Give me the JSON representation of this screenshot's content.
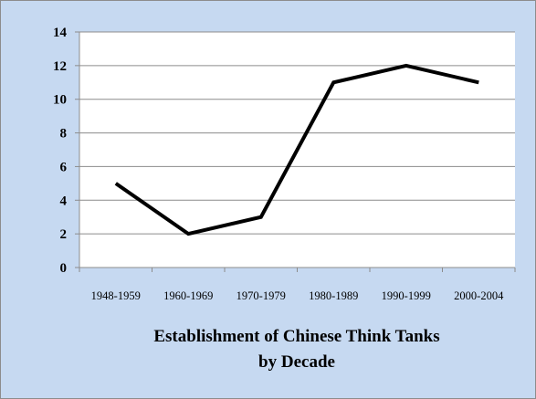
{
  "chart_data": {
    "type": "line",
    "title_lines": [
      "Establishment of Chinese Think Tanks",
      "by Decade"
    ],
    "categories": [
      "1948-1959",
      "1960-1969",
      "1970-1979",
      "1980-1989",
      "1990-1999",
      "2000-2004"
    ],
    "values": [
      5,
      2,
      3,
      11,
      12,
      11
    ],
    "ylim": [
      0,
      14
    ],
    "yticks": [
      "0",
      "2",
      "4",
      "6",
      "8",
      "10",
      "12",
      "14"
    ],
    "grid": "horizontal",
    "legend": "none",
    "colors": {
      "background": "#c6d9f1",
      "plot_area": "#ffffff",
      "line": "#000000",
      "grid": "#8c8c8c"
    }
  }
}
